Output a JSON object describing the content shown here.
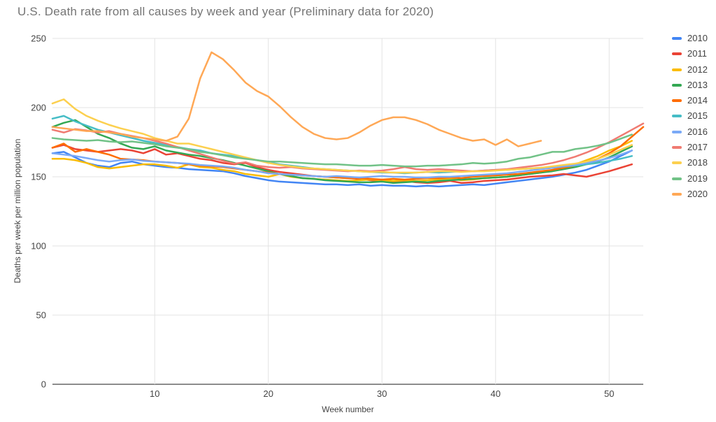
{
  "chart_data": {
    "type": "line",
    "title": "U.S. Death rate from all causes by week and year (Preliminary data for 2020)",
    "xlabel": "Week number",
    "ylabel": "Deaths per week per million population",
    "x_domain": [
      1,
      53
    ],
    "ylim": [
      0,
      250
    ],
    "x_ticks": [
      10,
      20,
      30,
      40,
      50
    ],
    "y_ticks": [
      0,
      50,
      100,
      150,
      200,
      250
    ],
    "grid": true,
    "legend_position": "right",
    "grid_color": "#e3e3e3",
    "axis_line_color": "#666666",
    "tick_label_color": "#444444",
    "title_color": "#757575",
    "series": [
      {
        "name": "2010",
        "color": "#4285F4",
        "start_week": 1,
        "values": [
          167,
          168,
          164,
          160,
          158,
          157,
          160,
          161,
          159,
          158,
          157,
          156.5,
          155.5,
          155,
          154.5,
          154,
          152.5,
          150.5,
          149,
          147.5,
          146.5,
          146,
          145.5,
          145,
          144.5,
          144.5,
          144,
          144.5,
          143.5,
          144,
          143.5,
          143.5,
          143,
          143.5,
          143,
          143.5,
          144,
          144.5,
          144,
          145,
          146,
          147,
          148,
          149,
          150,
          151.5,
          153,
          155,
          158,
          161,
          165,
          169
        ]
      },
      {
        "name": "2011",
        "color": "#EA4335",
        "start_week": 1,
        "values": [
          171,
          173,
          170,
          169,
          168,
          169,
          170,
          169,
          167,
          170,
          166,
          167,
          165,
          163,
          162,
          160,
          159,
          160,
          157,
          155,
          153.5,
          152.5,
          151.5,
          150.5,
          150,
          149.5,
          149,
          148.5,
          147.5,
          147,
          146.5,
          147,
          146,
          145.5,
          146,
          147,
          145.5,
          146,
          147,
          147.5,
          148,
          149,
          150,
          150.5,
          151,
          152,
          151,
          150,
          152,
          154,
          156.5,
          159
        ]
      },
      {
        "name": "2012",
        "color": "#FBBC04",
        "start_week": 1,
        "values": [
          163,
          163,
          162,
          160,
          157,
          156,
          157,
          158,
          159,
          159,
          158,
          156.5,
          159,
          157,
          156.5,
          155,
          154,
          152,
          151,
          150,
          152,
          150,
          149,
          148.5,
          148,
          147.5,
          147,
          147.5,
          148,
          147.5,
          147,
          147.5,
          147,
          147.5,
          148,
          148.5,
          147.5,
          148,
          149,
          149.5,
          150,
          151,
          152,
          153,
          155,
          157,
          159,
          162,
          165,
          169,
          172,
          176
        ]
      },
      {
        "name": "2013",
        "color": "#34A853",
        "start_week": 1,
        "values": [
          186,
          189,
          191,
          186,
          181,
          178,
          174,
          171,
          170,
          172,
          169,
          167.5,
          166,
          165,
          163.5,
          162,
          160,
          158,
          156,
          154,
          152,
          150.5,
          149,
          148.5,
          147.5,
          147,
          146.5,
          146,
          146,
          146.5,
          145.5,
          146,
          146.5,
          146,
          147,
          147.5,
          148,
          148.5,
          149,
          149.5,
          150,
          151,
          152,
          153,
          154,
          155.5,
          157,
          159,
          161,
          164,
          168,
          172
        ]
      },
      {
        "name": "2014",
        "color": "#FF6D01",
        "start_week": 1,
        "values": [
          171,
          174,
          168,
          170,
          168,
          166,
          163,
          162.5,
          162,
          161,
          160.5,
          160,
          159,
          158,
          157.5,
          157,
          156,
          155,
          154,
          153,
          152,
          151.5,
          151,
          150.5,
          150,
          149.5,
          149,
          149,
          148.5,
          148,
          148.5,
          148,
          148.5,
          149,
          149,
          149.5,
          149,
          150,
          150.5,
          151,
          151.5,
          152,
          153,
          154,
          155,
          156.5,
          158,
          160,
          163,
          167,
          172,
          179,
          186
        ]
      },
      {
        "name": "2015",
        "color": "#46BDC6",
        "start_week": 1,
        "values": [
          192,
          194,
          190,
          187,
          184,
          182,
          180,
          178,
          176,
          174.5,
          173,
          171.5,
          170,
          169,
          167,
          166,
          165,
          163.5,
          162,
          160.5,
          159,
          158,
          157,
          156,
          155.5,
          155,
          154.5,
          154,
          153.5,
          153,
          153,
          152.5,
          153,
          153.5,
          153,
          153.5,
          154,
          154,
          154.5,
          155,
          155,
          155.5,
          156,
          156.5,
          157,
          157.5,
          158,
          159,
          160,
          161.5,
          163,
          165
        ]
      },
      {
        "name": "2016",
        "color": "#7BAAF7",
        "start_week": 1,
        "values": [
          167,
          166,
          165,
          163.5,
          162,
          161,
          162,
          162.5,
          161.5,
          161,
          160.5,
          160,
          159.5,
          158.5,
          158,
          157.5,
          156.5,
          155,
          154,
          152.5,
          152,
          151.5,
          151,
          150.5,
          150,
          150.5,
          150,
          149.5,
          150,
          150.5,
          150,
          150,
          149.5,
          149.5,
          150,
          150,
          150.5,
          151,
          151.5,
          152,
          152.5,
          153.5,
          154.5,
          155.5,
          156.5,
          157.5,
          158.5,
          160,
          161.5,
          163.5,
          166,
          169
        ]
      },
      {
        "name": "2017",
        "color": "#F07B72",
        "start_week": 1,
        "values": [
          184,
          182,
          184.5,
          183.5,
          182,
          183,
          181,
          179.5,
          178,
          176,
          174,
          171.5,
          169,
          166.5,
          164,
          161.5,
          159.5,
          160.5,
          158,
          157,
          156.5,
          157,
          156,
          155.5,
          155,
          154.5,
          154,
          154.5,
          154,
          154.5,
          155.5,
          157,
          155.5,
          155,
          155.5,
          155,
          154.5,
          154,
          154.5,
          155,
          155.5,
          156.5,
          157.5,
          158.5,
          160,
          162,
          164.5,
          167.5,
          171,
          175,
          179.5,
          184,
          188.5
        ]
      },
      {
        "name": "2018",
        "color": "#FCD04F",
        "start_week": 1,
        "values": [
          203,
          206,
          199,
          194,
          190.5,
          187.5,
          185,
          183,
          181,
          178,
          176,
          174,
          174,
          172,
          170,
          168,
          166,
          164,
          162,
          160,
          158.5,
          157.5,
          156.5,
          156,
          155.5,
          155,
          154.5,
          154,
          153.5,
          153.5,
          153,
          153,
          153,
          153.5,
          154,
          154,
          153.5,
          154,
          154,
          154.5,
          155,
          155.5,
          156,
          156.5,
          157.5,
          158.5,
          159.5,
          161,
          163,
          166,
          169.5,
          173
        ]
      },
      {
        "name": "2019",
        "color": "#71C287",
        "start_week": 1,
        "values": [
          178,
          177,
          176.5,
          176,
          176.5,
          175.5,
          175,
          175.5,
          174.5,
          173.5,
          172,
          171,
          170,
          168,
          167,
          165.5,
          164,
          163,
          162,
          161,
          161,
          160.5,
          160,
          159.5,
          159,
          159,
          158.5,
          158,
          158,
          158.5,
          158,
          157.5,
          157.5,
          158,
          158,
          158.5,
          159,
          160,
          159.5,
          160,
          161,
          163,
          164,
          166,
          168,
          168,
          170,
          171,
          172.5,
          174.5,
          177.5,
          180.5
        ]
      },
      {
        "name": "2020",
        "color": "#FFA856",
        "start_week": 1,
        "values": [
          186,
          185,
          184,
          183,
          183,
          182,
          181,
          179,
          178,
          177,
          176,
          179,
          192,
          221,
          240,
          235,
          227,
          218,
          212,
          208,
          201,
          193,
          186,
          181,
          178,
          177,
          178,
          182,
          187,
          191,
          193,
          193,
          191,
          188,
          184,
          181,
          178,
          176,
          177,
          173,
          177,
          172,
          174,
          176
        ]
      }
    ]
  }
}
